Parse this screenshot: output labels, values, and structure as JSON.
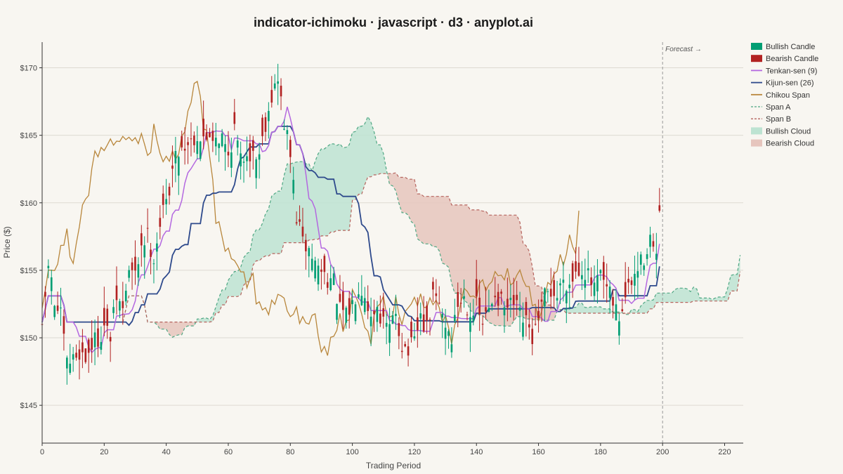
{
  "chart_data": {
    "type": "ichimoku",
    "title": "indicator-ichimoku · javascript · d3 · anyplot.ai",
    "xlabel": "Trading Period",
    "ylabel": "Price ($)",
    "xlim": [
      0,
      226
    ],
    "ylim": [
      142.2,
      171.9
    ],
    "x_ticks": [
      0,
      20,
      40,
      60,
      80,
      100,
      120,
      140,
      160,
      180,
      200,
      220
    ],
    "x_tick_labels": [
      "0",
      "20",
      "40",
      "60",
      "80",
      "100",
      "120",
      "140",
      "160",
      "180",
      "200",
      "220"
    ],
    "y_ticks": [
      145,
      150,
      155,
      160,
      165,
      170
    ],
    "y_tick_labels": [
      "$145",
      "$150",
      "$155",
      "$160",
      "$165",
      "$170"
    ],
    "grid": "horizontal",
    "forecast": {
      "x": 200,
      "label": "Forecast →"
    },
    "legend_position": "right",
    "legend": [
      {
        "label": "Bullish Candle",
        "kind": "rect",
        "color": "#009E73"
      },
      {
        "label": "Bearish Candle",
        "kind": "rect",
        "color": "#B22222"
      },
      {
        "label": "Tenkan-sen (9)",
        "kind": "line",
        "color": "#B468E0"
      },
      {
        "label": "Kijun-sen (26)",
        "kind": "line",
        "color": "#2E4A8C"
      },
      {
        "label": "Chikou Span",
        "kind": "line",
        "color": "#B8863B"
      },
      {
        "label": "Span A",
        "kind": "dash",
        "color": "#4FA783"
      },
      {
        "label": "Span B",
        "kind": "dash",
        "color": "#B5645E"
      },
      {
        "label": "Bullish Cloud",
        "kind": "area",
        "color": "#BDE3D2"
      },
      {
        "label": "Bearish Cloud",
        "kind": "area",
        "color": "#E6C5BD"
      }
    ],
    "colors": {
      "bull": "#009E73",
      "bear": "#B22222",
      "tenkan": "#B468E0",
      "kijun": "#2E4A8C",
      "chikou": "#B8863B",
      "spanA": "#4FA783",
      "spanB": "#B5645E",
      "bull_cloud": "#BDE3D2",
      "bear_cloud": "#E6C5BD"
    },
    "close_anchors": [
      [
        0,
        150.3
      ],
      [
        2,
        155.5
      ],
      [
        4,
        152.5
      ],
      [
        6,
        151.5
      ],
      [
        8,
        148.0
      ],
      [
        10,
        148.4
      ],
      [
        12,
        149.0
      ],
      [
        14,
        148.5
      ],
      [
        16,
        149.5
      ],
      [
        18,
        150.0
      ],
      [
        20,
        150.8
      ],
      [
        22,
        150.0
      ],
      [
        24,
        153.0
      ],
      [
        26,
        152.0
      ],
      [
        28,
        155.0
      ],
      [
        30,
        154.5
      ],
      [
        32,
        157.0
      ],
      [
        34,
        157.5
      ],
      [
        36,
        156.0
      ],
      [
        38,
        158.5
      ],
      [
        40,
        160.0
      ],
      [
        42,
        162.5
      ],
      [
        44,
        164.0
      ],
      [
        46,
        164.3
      ],
      [
        48,
        164.7
      ],
      [
        50,
        165.0
      ],
      [
        52,
        164.5
      ],
      [
        54,
        165.2
      ],
      [
        56,
        165.0
      ],
      [
        58,
        164.8
      ],
      [
        60,
        163.5
      ],
      [
        62,
        165.5
      ],
      [
        64,
        163.0
      ],
      [
        66,
        164.0
      ],
      [
        68,
        163.5
      ],
      [
        70,
        163.7
      ],
      [
        72,
        166.0
      ],
      [
        74,
        168.0
      ],
      [
        76,
        169.0
      ],
      [
        78,
        166.0
      ],
      [
        80,
        163.5
      ],
      [
        82,
        159.0
      ],
      [
        84,
        157.0
      ],
      [
        86,
        156.5
      ],
      [
        88,
        155.5
      ],
      [
        90,
        155.0
      ],
      [
        92,
        154.5
      ],
      [
        94,
        154.0
      ],
      [
        96,
        152.0
      ],
      [
        98,
        151.5
      ],
      [
        100,
        152.5
      ],
      [
        102,
        154.0
      ],
      [
        104,
        153.5
      ],
      [
        106,
        151.5
      ],
      [
        108,
        152.5
      ],
      [
        110,
        151.0
      ],
      [
        112,
        150.5
      ],
      [
        114,
        152.0
      ],
      [
        116,
        149.5
      ],
      [
        118,
        149.0
      ],
      [
        120,
        149.5
      ],
      [
        122,
        151.5
      ],
      [
        124,
        150.5
      ],
      [
        126,
        153.0
      ],
      [
        128,
        152.5
      ],
      [
        130,
        151.0
      ],
      [
        132,
        150.0
      ],
      [
        134,
        152.5
      ],
      [
        136,
        153.0
      ],
      [
        138,
        152.0
      ],
      [
        140,
        152.3
      ],
      [
        142,
        151.0
      ],
      [
        144,
        152.0
      ],
      [
        146,
        153.5
      ],
      [
        148,
        152.5
      ],
      [
        150,
        152.0
      ],
      [
        152,
        152.5
      ],
      [
        154,
        151.5
      ],
      [
        156,
        151.0
      ],
      [
        158,
        150.0
      ],
      [
        160,
        151.0
      ],
      [
        162,
        153.0
      ],
      [
        164,
        153.5
      ],
      [
        166,
        153.0
      ],
      [
        168,
        154.5
      ],
      [
        170,
        154.0
      ],
      [
        172,
        155.0
      ],
      [
        174,
        155.3
      ],
      [
        176,
        154.5
      ],
      [
        178,
        153.5
      ],
      [
        180,
        154.5
      ],
      [
        182,
        153.5
      ],
      [
        184,
        152.5
      ],
      [
        186,
        151.5
      ],
      [
        188,
        153.0
      ],
      [
        190,
        154.0
      ],
      [
        192,
        155.0
      ],
      [
        194,
        156.0
      ],
      [
        196,
        157.5
      ],
      [
        198,
        155.5
      ],
      [
        199,
        159.7
      ]
    ]
  }
}
